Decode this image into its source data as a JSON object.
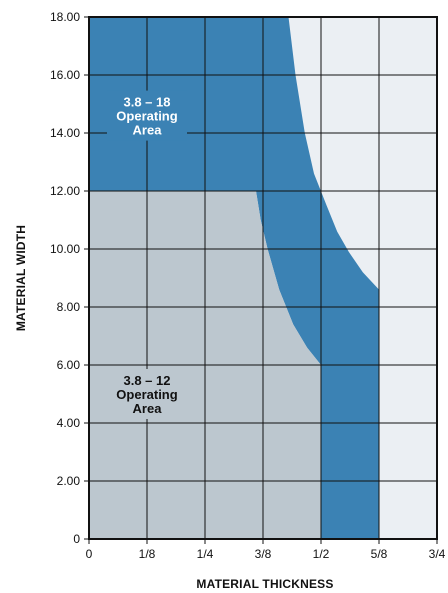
{
  "chart_data": {
    "type": "area",
    "title": "",
    "xlabel": "MATERIAL THICKNESS",
    "ylabel": "MATERIAL WIDTH",
    "xlim": [
      0,
      0.75
    ],
    "ylim": [
      0,
      18
    ],
    "grid": true,
    "x_tick_labels": [
      "0",
      "1/8",
      "1/4",
      "3/8",
      "1/2",
      "5/8",
      "3/4"
    ],
    "x_tick_values": [
      0,
      0.125,
      0.25,
      0.375,
      0.5,
      0.625,
      0.75
    ],
    "y_tick_labels": [
      "0",
      "2.00",
      "4.00",
      "6.00",
      "8.00",
      "10.00",
      "12.00",
      "14.00",
      "16.00",
      "18.00"
    ],
    "y_tick_values": [
      0,
      2,
      4,
      6,
      8,
      10,
      12,
      14,
      16,
      18
    ],
    "colors": {
      "outside": "#ebeff3",
      "region_3_8_12": "#bcc7cf",
      "region_3_8_18": "#3b82b4",
      "grid": "#111111",
      "label_dark": "#111111",
      "label_light": "#ffffff"
    },
    "regions": [
      {
        "name": "3.8 – 18 Operating Area",
        "label_lines": [
          "3.8 – 18",
          "Operating",
          "Area"
        ],
        "label_at": [
          0.125,
          14.6
        ],
        "color_key": "region_3_8_18",
        "text_color_key": "label_light",
        "boundary": [
          [
            0,
            18
          ],
          [
            0.43,
            18
          ],
          [
            0.445,
            16
          ],
          [
            0.465,
            14
          ],
          [
            0.485,
            12.6
          ],
          [
            0.512,
            11.5
          ],
          [
            0.535,
            10.6
          ],
          [
            0.56,
            9.9
          ],
          [
            0.59,
            9.2
          ],
          [
            0.625,
            8.6
          ],
          [
            0.625,
            0
          ],
          [
            0.5,
            0
          ],
          [
            0.5,
            6
          ],
          [
            0.47,
            6.6
          ],
          [
            0.44,
            7.4
          ],
          [
            0.41,
            8.6
          ],
          [
            0.385,
            10
          ],
          [
            0.37,
            11
          ],
          [
            0.36,
            12
          ],
          [
            0,
            12
          ]
        ]
      },
      {
        "name": "3.8 – 12 Operating Area",
        "label_lines": [
          "3.8 – 12",
          "Operating",
          "Area"
        ],
        "label_at": [
          0.125,
          5.0
        ],
        "color_key": "region_3_8_12",
        "text_color_key": "label_dark",
        "boundary": [
          [
            0,
            12
          ],
          [
            0.36,
            12
          ],
          [
            0.37,
            11
          ],
          [
            0.385,
            10
          ],
          [
            0.41,
            8.6
          ],
          [
            0.44,
            7.4
          ],
          [
            0.47,
            6.6
          ],
          [
            0.5,
            6
          ],
          [
            0.5,
            0
          ],
          [
            0,
            0
          ]
        ]
      }
    ]
  }
}
